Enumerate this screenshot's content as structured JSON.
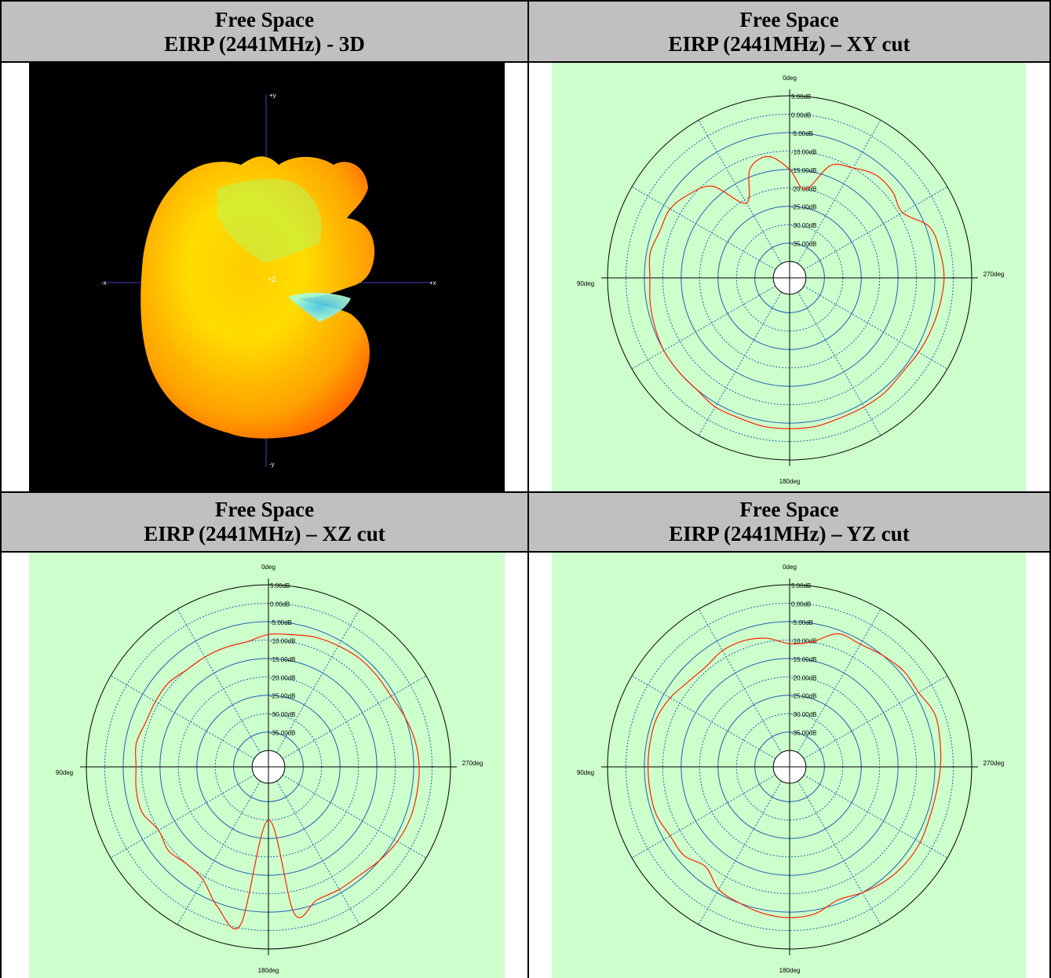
{
  "panels": [
    {
      "title_line1": "Free Space",
      "title_line2": "EIRP (2441MHz) - 3D"
    },
    {
      "title_line1": "Free Space",
      "title_line2": "EIRP (2441MHz) – XY cut"
    },
    {
      "title_line1": "Free Space",
      "title_line2": "EIRP (2441MHz) – XZ cut"
    },
    {
      "title_line1": "Free Space",
      "title_line2": "EIRP (2441MHz) – YZ cut"
    }
  ],
  "view3d": {
    "axis_labels": {
      "py": "+y",
      "ny": "-y",
      "px": "+x",
      "nx": "-x",
      "pz": "+Z"
    },
    "colors": {
      "background": "#000000",
      "axis": "#4040c0",
      "high": "#ff5000",
      "mid": "#ffcc00",
      "low": "#88ffcc",
      "null": "#44ccff"
    }
  },
  "chart_data": [
    {
      "type": "polar",
      "title": "EIRP (2441MHz) – XY cut",
      "angle_labels": [
        "0deg",
        "90deg",
        "180deg",
        "270deg"
      ],
      "radial_labels": [
        "5.00dB",
        "0.00dB",
        "-5.00dB",
        "-10.00dB",
        "-15.00dB",
        "-20.00dB",
        "-25.00dB",
        "-30.00dB",
        "-35.00dB"
      ],
      "rlim": [
        -40,
        5
      ],
      "angle_direction": "counterclockwise, 0deg at top",
      "color": "#ff2000",
      "angles": [
        0,
        10,
        20,
        30,
        40,
        50,
        60,
        70,
        80,
        90,
        100,
        110,
        120,
        130,
        140,
        150,
        160,
        170,
        180,
        190,
        200,
        210,
        220,
        230,
        240,
        250,
        260,
        270,
        280,
        290,
        300,
        310,
        320,
        330,
        340,
        350
      ],
      "values": [
        -15,
        -11,
        -13,
        -21,
        -12,
        -9,
        -7,
        -7,
        -6,
        -6.5,
        -6,
        -5.5,
        -5,
        -5,
        -5,
        -4,
        -4,
        -3.5,
        -3.5,
        -3.5,
        -4,
        -4,
        -4,
        -4.5,
        -4,
        -3.5,
        -3,
        -2.5,
        -3,
        -4,
        -9,
        -8,
        -8,
        -10,
        -12,
        -20
      ]
    },
    {
      "type": "polar",
      "title": "EIRP (2441MHz) – XZ cut",
      "angle_labels": [
        "0deg",
        "90deg",
        "180deg",
        "270deg"
      ],
      "radial_labels": [
        "5.00dB",
        "0.00dB",
        "-5.00dB",
        "-10.00dB",
        "-15.00dB",
        "-20.00dB",
        "-25.00dB",
        "-30.00dB",
        "-35.00dB"
      ],
      "rlim": [
        -40,
        5
      ],
      "angle_direction": "counterclockwise, 0deg at top",
      "color": "#ff2000",
      "angles": [
        0,
        10,
        20,
        30,
        40,
        50,
        60,
        70,
        80,
        90,
        100,
        110,
        120,
        130,
        140,
        150,
        160,
        170,
        180,
        190,
        200,
        210,
        220,
        230,
        240,
        250,
        260,
        270,
        280,
        290,
        300,
        310,
        320,
        330,
        340,
        350
      ],
      "values": [
        -8.5,
        -10,
        -10,
        -10,
        -10,
        -9,
        -9,
        -9,
        -8,
        -8.5,
        -8,
        -8,
        -10,
        -9,
        -10,
        -9,
        -4,
        -1,
        -30,
        -4,
        -6,
        -6,
        -6,
        -5,
        -4,
        -3.5,
        -3.5,
        -3.5,
        -4,
        -5,
        -6,
        -6,
        -6,
        -6.5,
        -7,
        -8
      ]
    },
    {
      "type": "polar",
      "title": "EIRP (2441MHz) – YZ cut",
      "angle_labels": [
        "0deg",
        "90deg",
        "180deg",
        "270deg"
      ],
      "radial_labels": [
        "5.00dB",
        "0.00dB",
        "-5.00dB",
        "-10.00dB",
        "-15.00dB",
        "-20.00dB",
        "-25.00dB",
        "-30.00dB",
        "-35.00dB"
      ],
      "rlim": [
        -40,
        5
      ],
      "angle_direction": "counterclockwise, 0deg at top",
      "color": "#ff2000",
      "angles": [
        0,
        10,
        20,
        30,
        40,
        50,
        60,
        70,
        80,
        90,
        100,
        110,
        120,
        130,
        140,
        150,
        160,
        170,
        180,
        190,
        200,
        210,
        220,
        230,
        240,
        250,
        260,
        270,
        280,
        290,
        300,
        310,
        320,
        330,
        340,
        350
      ],
      "values": [
        -11,
        -9,
        -8,
        -8,
        -9,
        -8.5,
        -7,
        -6,
        -6,
        -6,
        -6,
        -6,
        -7,
        -7,
        -9,
        -6,
        -5,
        -4,
        -3.5,
        -4,
        -6,
        -5,
        -4,
        -3.5,
        -3.5,
        -4,
        -4,
        -3.5,
        -3,
        -2.5,
        -4,
        -4,
        -5,
        -6,
        -6,
        -10
      ]
    }
  ]
}
